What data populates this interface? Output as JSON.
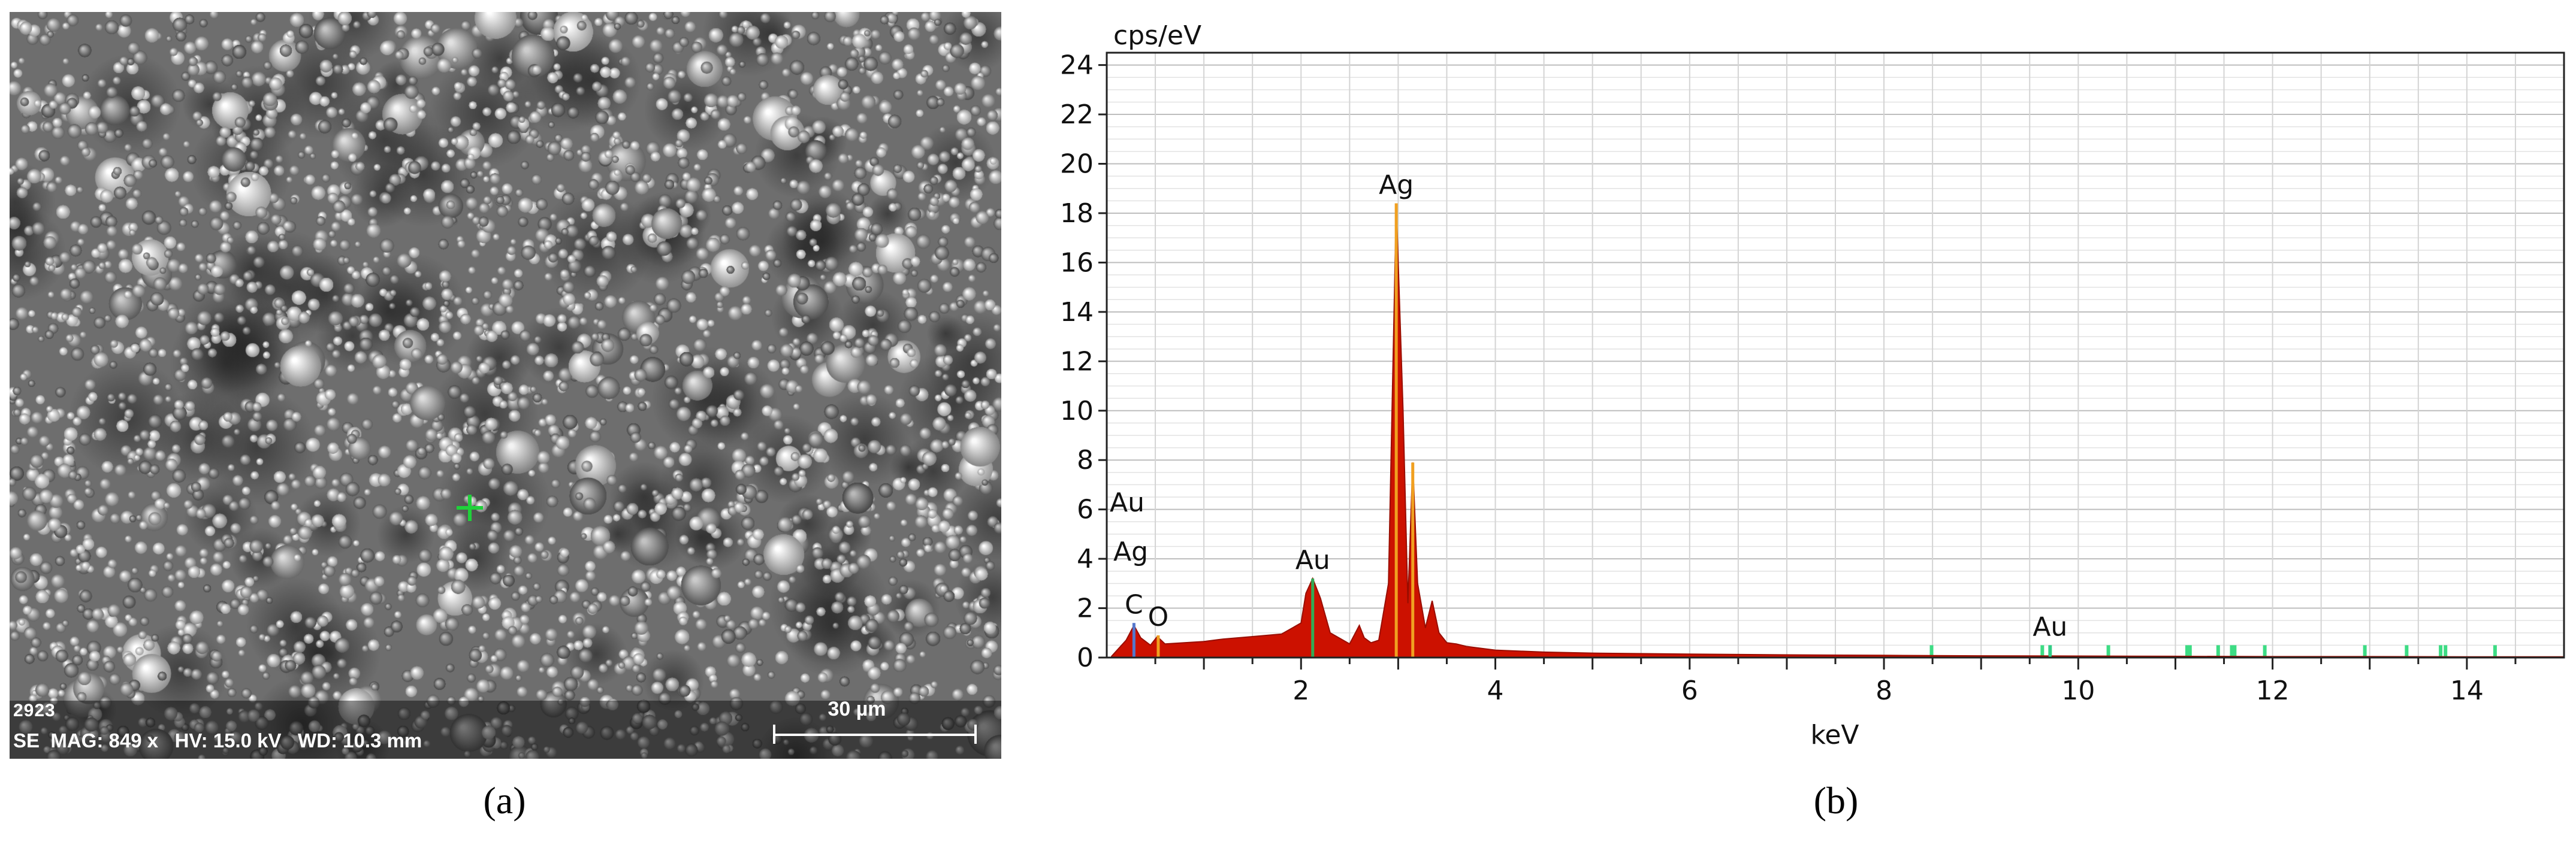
{
  "panels": {
    "a_label": "(a)",
    "b_label": "(b)"
  },
  "sem_image": {
    "image_id": "2923",
    "info_line": "SE  MAG: 849 x   HV: 15.0 kV   WD: 10.3 mm",
    "scale_bar_label": "30 µm",
    "marker": "green-crosshair"
  },
  "chart_data": {
    "type": "area",
    "title": "",
    "xlabel": "keV",
    "ylabel": "cps/eV",
    "xlim": [
      0,
      15
    ],
    "ylim": [
      0,
      24.5
    ],
    "x_ticks": [
      2,
      4,
      6,
      8,
      10,
      12,
      14
    ],
    "y_ticks": [
      0,
      2,
      4,
      6,
      8,
      10,
      12,
      14,
      16,
      18,
      20,
      22,
      24
    ],
    "grid": true,
    "spectrum": {
      "color": "#cc1100",
      "x": [
        0.05,
        0.2,
        0.28,
        0.35,
        0.45,
        0.52,
        0.6,
        0.8,
        1.0,
        1.2,
        1.5,
        1.8,
        2.0,
        2.05,
        2.12,
        2.2,
        2.3,
        2.5,
        2.6,
        2.65,
        2.72,
        2.8,
        2.9,
        2.98,
        3.05,
        3.1,
        3.15,
        3.2,
        3.28,
        3.35,
        3.42,
        3.5,
        3.6,
        3.7,
        3.8,
        4.0,
        4.5,
        5.0,
        6.0,
        7.0,
        8.0,
        9.0,
        10.0,
        11.0,
        12.0,
        13.0,
        14.0,
        15.0
      ],
      "y": [
        0.05,
        0.7,
        1.3,
        0.8,
        0.5,
        0.85,
        0.55,
        0.6,
        0.65,
        0.75,
        0.85,
        0.95,
        1.4,
        2.6,
        3.2,
        2.4,
        1.0,
        0.55,
        1.3,
        0.8,
        0.6,
        0.7,
        3.0,
        18.4,
        10.0,
        2.2,
        7.9,
        3.0,
        1.2,
        2.3,
        1.0,
        0.6,
        0.55,
        0.45,
        0.4,
        0.3,
        0.22,
        0.18,
        0.14,
        0.11,
        0.09,
        0.07,
        0.06,
        0.05,
        0.04,
        0.04,
        0.03,
        0.03
      ]
    },
    "element_markers": [
      {
        "energy": 0.28,
        "label": "C",
        "height": 1.4,
        "color": "#5577cc"
      },
      {
        "energy": 0.53,
        "label": "O",
        "height": 0.9,
        "color": "#f0a020"
      },
      {
        "energy": 2.12,
        "label": "Au",
        "height": 3.2,
        "color": "#33aa55"
      },
      {
        "energy": 2.98,
        "label": "Ag",
        "height": 18.4,
        "color": "#f0a020"
      },
      {
        "energy": 3.15,
        "label": "",
        "height": 7.9,
        "color": "#f0a020"
      },
      {
        "energy": 9.71,
        "label": "Au",
        "height": 0.5,
        "color": "#33cc88"
      }
    ],
    "minor_lines": [
      1.67,
      1.75,
      2.04,
      2.2,
      2.65,
      2.8,
      3.35,
      8.49,
      9.63,
      9.71,
      10.31,
      11.12,
      11.15,
      11.44,
      11.58,
      11.61,
      11.92,
      12.95,
      13.38,
      13.73,
      13.78,
      14.29
    ],
    "left_legend": [
      "Au",
      "Ag"
    ]
  }
}
